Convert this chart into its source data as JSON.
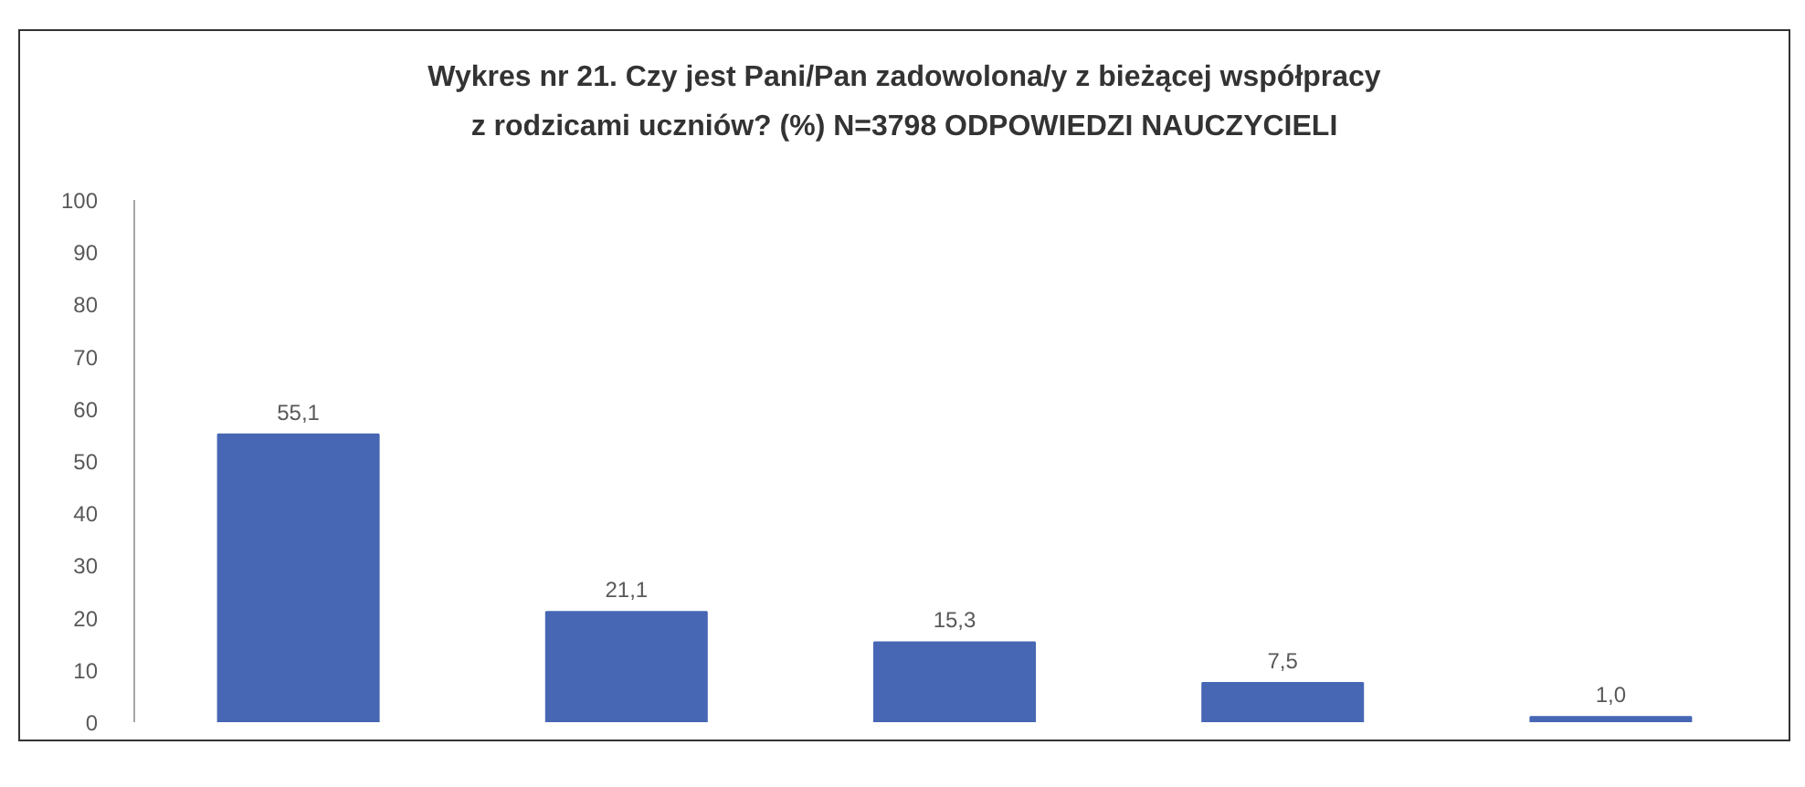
{
  "chart_data": {
    "type": "bar",
    "title": "Wykres nr 21. Czy jest Pani/Pan zadowolona/y z bieżącej współpracy\nz rodzicami uczniów? (%) N=3798 ODPOWIEDZI NAUCZYCIELI",
    "categories": [
      null,
      null,
      null,
      null,
      null
    ],
    "values": [
      55.1,
      21.1,
      15.3,
      7.5,
      1.0
    ],
    "value_labels": [
      "55,1",
      "21,1",
      "15,3",
      "7,5",
      "1,0"
    ],
    "color": "#4767b4",
    "ylim": [
      0,
      100
    ],
    "yticks": [
      0,
      10,
      20,
      30,
      40,
      50,
      60,
      70,
      80,
      90,
      100
    ],
    "grid": false,
    "tick_labels": "y"
  }
}
